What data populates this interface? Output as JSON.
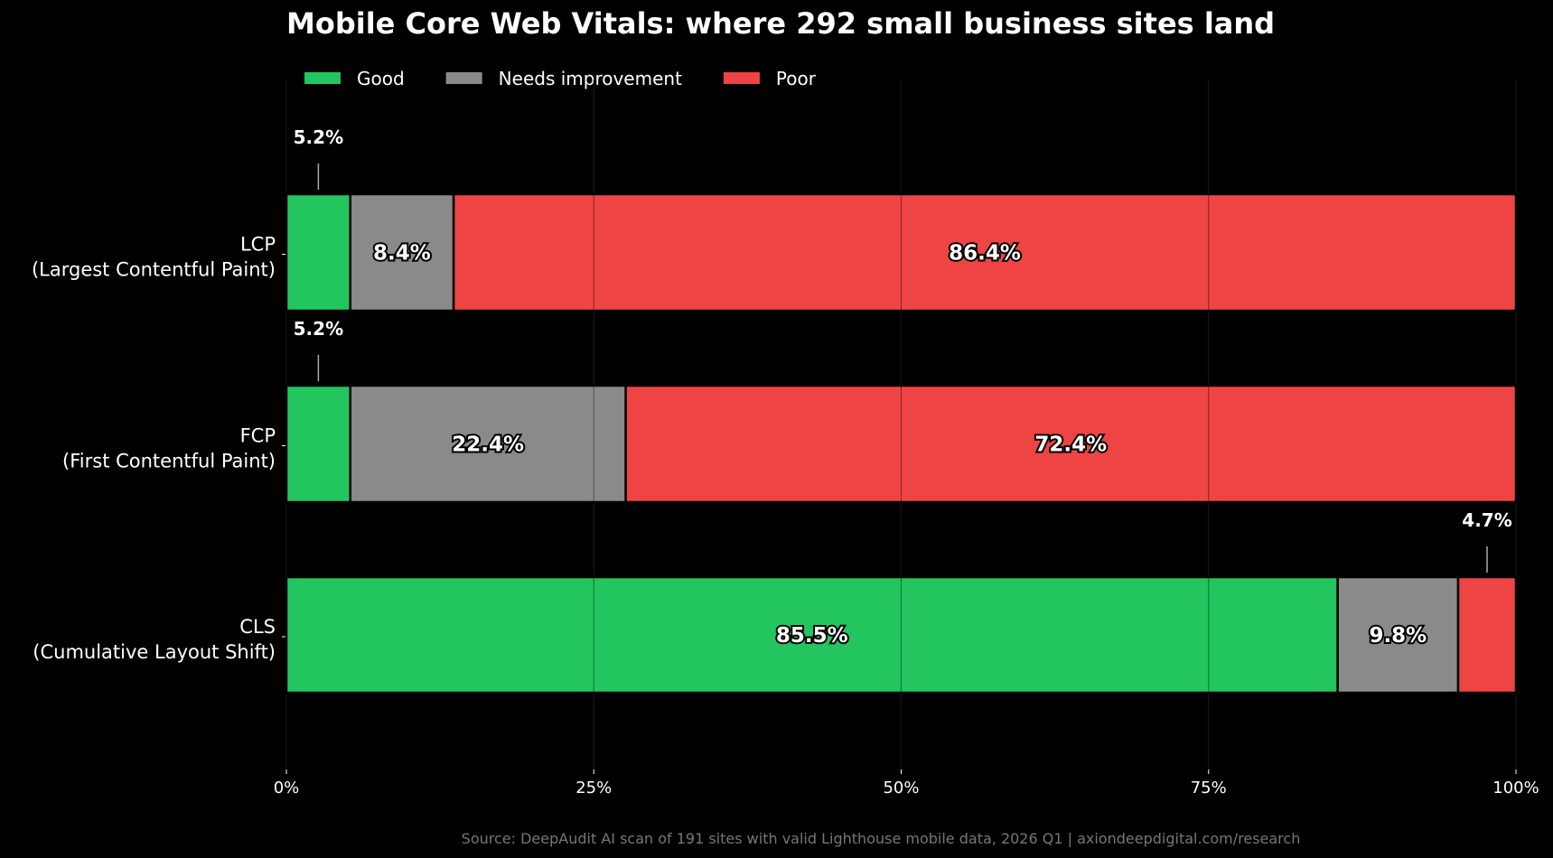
{
  "chart_data": {
    "type": "bar",
    "orientation": "horizontal",
    "stacked": true,
    "title": "Mobile Core Web Vitals: where 292 small business sites land",
    "categories": [
      {
        "short": "LCP",
        "long": "(Largest Contentful Paint)"
      },
      {
        "short": "FCP",
        "long": "(First Contentful Paint)"
      },
      {
        "short": "CLS",
        "long": "(Cumulative Layout Shift)"
      }
    ],
    "series": [
      {
        "name": "Good",
        "color": "#22c55e",
        "values": [
          5.2,
          5.2,
          85.5
        ]
      },
      {
        "name": "Needs improvement",
        "color": "#8a8a8a",
        "values": [
          8.4,
          22.4,
          9.8
        ]
      },
      {
        "name": "Poor",
        "color": "#ef4444",
        "values": [
          86.4,
          72.4,
          4.7
        ]
      }
    ],
    "xlim": [
      0,
      100
    ],
    "xticks": [
      "0%",
      "25%",
      "50%",
      "75%",
      "100%"
    ],
    "grid": "vertical",
    "legend": "top-left",
    "source": "Source: DeepAudit AI scan of 191 sites with valid Lighthouse mobile data, 2026 Q1 | axiondeepdigital.com/research"
  }
}
